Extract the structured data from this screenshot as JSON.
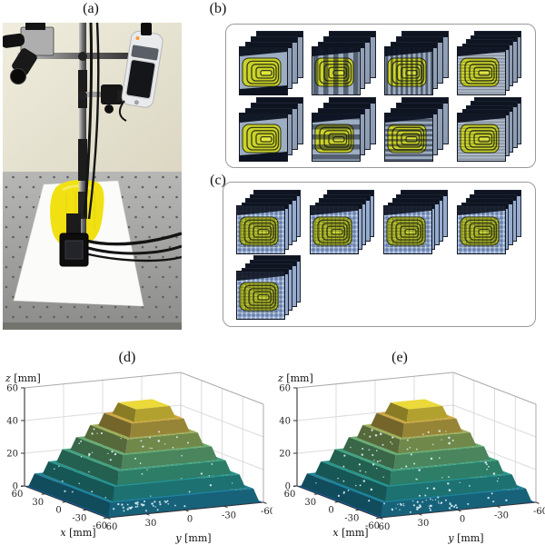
{
  "labels": {
    "a": "(a)",
    "b": "(b)",
    "c": "(c)",
    "d": "(d)",
    "e": "(e)"
  },
  "photo": {
    "description": "Measurement setup: camera and pico projector mounted on a pole above an optical table; yellow stepped pyramid on a white paper sheet",
    "items": [
      "camera",
      "pico-projector",
      "mounting-pole",
      "cross-bars",
      "clamp",
      "cables",
      "downward-camera-mount",
      "optical-table",
      "white-paper-sheet",
      "yellow-pyramid-object"
    ],
    "colors": {
      "wall": "#e9e6d6",
      "table": "#a6a6a4",
      "paper": "#fbfbfa",
      "object_yellow": "#f0e112"
    }
  },
  "panel_b": {
    "stack_rows": 2,
    "stack_cols": 4,
    "stacks": [
      {
        "pattern": "uniform-illumination",
        "layers": 4
      },
      {
        "pattern": "vertical-fringes-wide",
        "layers": 4
      },
      {
        "pattern": "vertical-fringes-dense",
        "layers": 4
      },
      {
        "pattern": "horizontal-fringes-fine",
        "layers": 5
      },
      {
        "pattern": "uniform-illumination",
        "layers": 4
      },
      {
        "pattern": "horizontal-fringes-wide",
        "layers": 4
      },
      {
        "pattern": "horizontal-fringes-dense",
        "layers": 4
      },
      {
        "pattern": "horizontal-fringes-fine",
        "layers": 5
      }
    ]
  },
  "panel_c": {
    "stacks": [
      {
        "pattern": "checkerboard",
        "layers": 5
      },
      {
        "pattern": "checkerboard",
        "layers": 5
      },
      {
        "pattern": "checkerboard",
        "layers": 5
      },
      {
        "pattern": "checkerboard",
        "layers": 5
      },
      {
        "pattern": "checkerboard",
        "layers": 5
      }
    ]
  },
  "chart_data": [
    {
      "id": "d",
      "type": "surface",
      "title": "(d)",
      "xlabel": "x [mm]",
      "ylabel": "y [mm]",
      "zlabel": "z [mm]",
      "x_ticks": [
        60,
        30,
        0,
        -30,
        -60
      ],
      "y_ticks": [
        60,
        30,
        0,
        -30,
        -60
      ],
      "z_ticks": [
        0,
        20,
        40,
        60
      ],
      "xlim": [
        60,
        -60
      ],
      "ylim": [
        60,
        -60
      ],
      "zlim": [
        0,
        60
      ],
      "object": "stepped pyramid height reconstruction",
      "floor_z": 0,
      "steps": [
        {
          "z_top": 8,
          "half_width": 55
        },
        {
          "z_top": 16,
          "half_width": 48
        },
        {
          "z_top": 24,
          "half_width": 41
        },
        {
          "z_top": 32,
          "half_width": 34
        },
        {
          "z_top": 40,
          "half_width": 27
        },
        {
          "z_top": 48,
          "half_width": 20
        },
        {
          "z_top": 55,
          "half_width": 13
        }
      ],
      "colormap": "parula",
      "colormap_stops": [
        [
          0,
          "#156fa0"
        ],
        [
          8,
          "#1f8399"
        ],
        [
          16,
          "#27958b"
        ],
        [
          24,
          "#40a381"
        ],
        [
          32,
          "#69ad73"
        ],
        [
          40,
          "#9cb05a"
        ],
        [
          48,
          "#cfa841"
        ],
        [
          55,
          "#ecd93a"
        ]
      ],
      "floor_color": "#1263b5",
      "noise_seed": 7,
      "speckle_count": 85
    },
    {
      "id": "e",
      "type": "surface",
      "title": "(e)",
      "xlabel": "x [mm]",
      "ylabel": "y [mm]",
      "zlabel": "z [mm]",
      "x_ticks": [
        60,
        30,
        0,
        -30,
        -60
      ],
      "y_ticks": [
        60,
        30,
        0,
        -30,
        -60
      ],
      "z_ticks": [
        0,
        20,
        40,
        60
      ],
      "xlim": [
        60,
        -60
      ],
      "ylim": [
        60,
        -60
      ],
      "zlim": [
        0,
        60
      ],
      "object": "stepped pyramid height reconstruction",
      "floor_z": 0,
      "steps": [
        {
          "z_top": 8,
          "half_width": 55
        },
        {
          "z_top": 16,
          "half_width": 48
        },
        {
          "z_top": 24,
          "half_width": 41
        },
        {
          "z_top": 32,
          "half_width": 34
        },
        {
          "z_top": 40,
          "half_width": 27
        },
        {
          "z_top": 48,
          "half_width": 20
        },
        {
          "z_top": 55,
          "half_width": 13
        }
      ],
      "colormap": "parula",
      "colormap_stops": [
        [
          0,
          "#156fa0"
        ],
        [
          8,
          "#1f8399"
        ],
        [
          16,
          "#27958b"
        ],
        [
          24,
          "#40a381"
        ],
        [
          32,
          "#69ad73"
        ],
        [
          40,
          "#9cb05a"
        ],
        [
          48,
          "#cfa841"
        ],
        [
          55,
          "#ecd93a"
        ]
      ],
      "floor_color": "#1263b5",
      "noise_seed": 23,
      "speckle_count": 125
    }
  ]
}
